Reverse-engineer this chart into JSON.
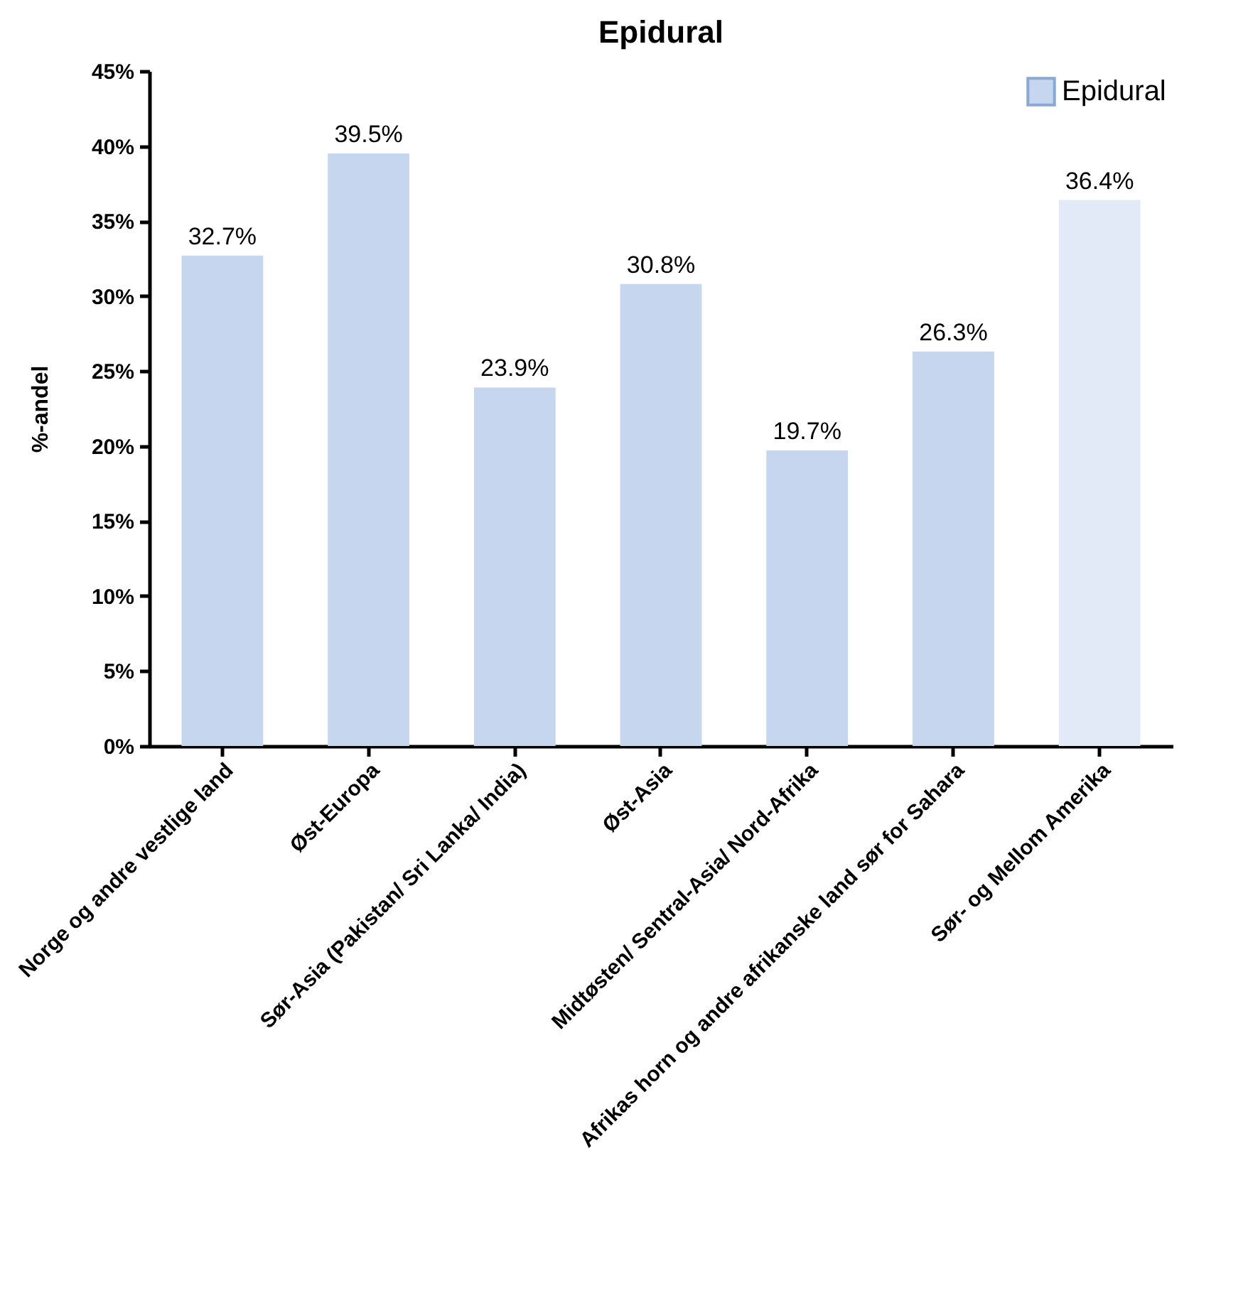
{
  "chart_data": {
    "type": "bar",
    "title": "Epidural",
    "ylabel": "%-andel",
    "categories": [
      "Norge og andre vestlige land",
      "Øst-Europa",
      "Sør-Asia (Pakistan/ Sri Lanka/ India)",
      "Øst-Asia",
      "Midtøsten/ Sentral-Asia/ Nord-Afrika",
      "Afrikas horn og andre afrikanske land sør for Sahara",
      "Sør- og Mellom Amerika"
    ],
    "series": [
      {
        "name": "Epidural",
        "color": "#c6d6ee",
        "colors": [
          "#c6d6ee",
          "#c6d6ee",
          "#c6d6ee",
          "#c6d6ee",
          "#c6d6ee",
          "#c6d6ee",
          "#e3eaf7"
        ],
        "values": [
          32.7,
          39.5,
          23.9,
          30.8,
          19.7,
          26.3,
          36.4
        ],
        "value_labels": [
          "32.7%",
          "39.5%",
          "23.9%",
          "30.8%",
          "19.7%",
          "26.3%",
          "36.4%"
        ]
      }
    ],
    "ylim": [
      0,
      45
    ],
    "yticks": [
      {
        "value": 0,
        "label": "0%"
      },
      {
        "value": 5,
        "label": "5%"
      },
      {
        "value": 10,
        "label": "10%"
      },
      {
        "value": 15,
        "label": "15%"
      },
      {
        "value": 20,
        "label": "20%"
      },
      {
        "value": 25,
        "label": "25%"
      },
      {
        "value": 30,
        "label": "30%"
      },
      {
        "value": 35,
        "label": "35%"
      },
      {
        "value": 40,
        "label": "40%"
      },
      {
        "value": 45,
        "label": "45%"
      }
    ],
    "grid": false,
    "legend": "top right"
  }
}
